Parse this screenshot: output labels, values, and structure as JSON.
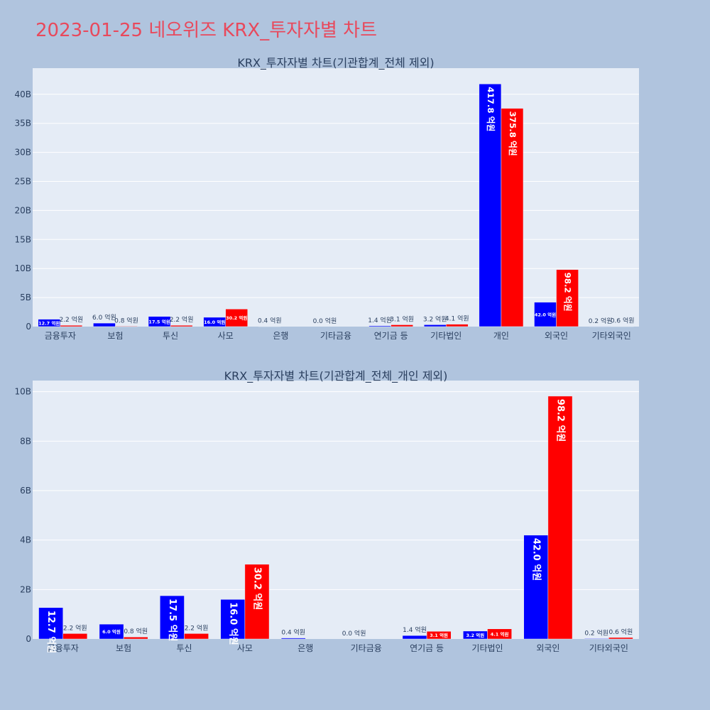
{
  "title": "2023-01-25 네오위즈 KRX_투자자별 차트",
  "colors": {
    "title": "#e8495c",
    "series_buy": "#0000ff",
    "series_sell": "#ff0000",
    "plot_bg": "#e5ecf6",
    "page_bg": "#b0c4de"
  },
  "chart_data": [
    {
      "type": "bar",
      "title": "KRX_투자자별 차트(기관합계_전체 제외)",
      "categories": [
        "금융투자",
        "보험",
        "투신",
        "사모",
        "은행",
        "기타금융",
        "연기금 등",
        "기타법인",
        "개인",
        "외국인",
        "기타외국인"
      ],
      "series": [
        {
          "values": [
            1270000000,
            600000000,
            1750000000,
            1600000000,
            40000000,
            0,
            140000000,
            320000000,
            41780000000,
            4200000000,
            20000000
          ],
          "labels": [
            "12.7 억원",
            "6.0 억원",
            "17.5 억원",
            "16.0 억원",
            "0.4 억원",
            "0.0 억원",
            "1.4 억원",
            "3.2 억원",
            "417.8 억원",
            "42.0 억원",
            "0.2 억원"
          ]
        },
        {
          "values": [
            220000000,
            80000000,
            220000000,
            3020000000,
            0,
            0,
            310000000,
            410000000,
            37580000000,
            9820000000,
            60000000
          ],
          "labels": [
            "2.2 억원",
            "0.8 억원",
            "2.2 억원",
            "30.2 억원",
            "",
            "",
            "3.1 억원",
            "4.1 억원",
            "375.8 억원",
            "98.2 억원",
            "0.6 억원"
          ]
        }
      ],
      "ylim": [
        0,
        44500000000
      ],
      "yticks": [
        0,
        5000000000,
        10000000000,
        15000000000,
        20000000000,
        25000000000,
        30000000000,
        35000000000,
        40000000000
      ],
      "yticklabels": [
        "0",
        "5B",
        "10B",
        "15B",
        "20B",
        "25B",
        "30B",
        "35B",
        "40B"
      ],
      "grid": true
    },
    {
      "type": "bar",
      "title": "KRX_투자자별 차트(기관합계_전체_개인 제외)",
      "categories": [
        "금융투자",
        "보험",
        "투신",
        "사모",
        "은행",
        "기타금융",
        "연기금 등",
        "기타법인",
        "외국인",
        "기타외국인"
      ],
      "series": [
        {
          "values": [
            1270000000,
            600000000,
            1750000000,
            1600000000,
            40000000,
            0,
            140000000,
            320000000,
            4200000000,
            20000000
          ],
          "labels": [
            "12.7 억원",
            "6.0 억원",
            "17.5 억원",
            "16.0 억원",
            "0.4 억원",
            "0.0 억원",
            "1.4 억원",
            "3.2 억원",
            "42.0 억원",
            "0.2 억원"
          ]
        },
        {
          "values": [
            220000000,
            80000000,
            220000000,
            3020000000,
            0,
            0,
            310000000,
            410000000,
            9820000000,
            60000000
          ],
          "labels": [
            "2.2 억원",
            "0.8 억원",
            "2.2 억원",
            "30.2 억원",
            "",
            "",
            "3.1 억원",
            "4.1 억원",
            "98.2 억원",
            "0.6 억원"
          ]
        }
      ],
      "ylim": [
        0,
        10450000000
      ],
      "yticks": [
        0,
        2000000000,
        4000000000,
        6000000000,
        8000000000,
        10000000000
      ],
      "yticklabels": [
        "0",
        "2B",
        "4B",
        "6B",
        "8B",
        "10B"
      ],
      "grid": true
    }
  ]
}
